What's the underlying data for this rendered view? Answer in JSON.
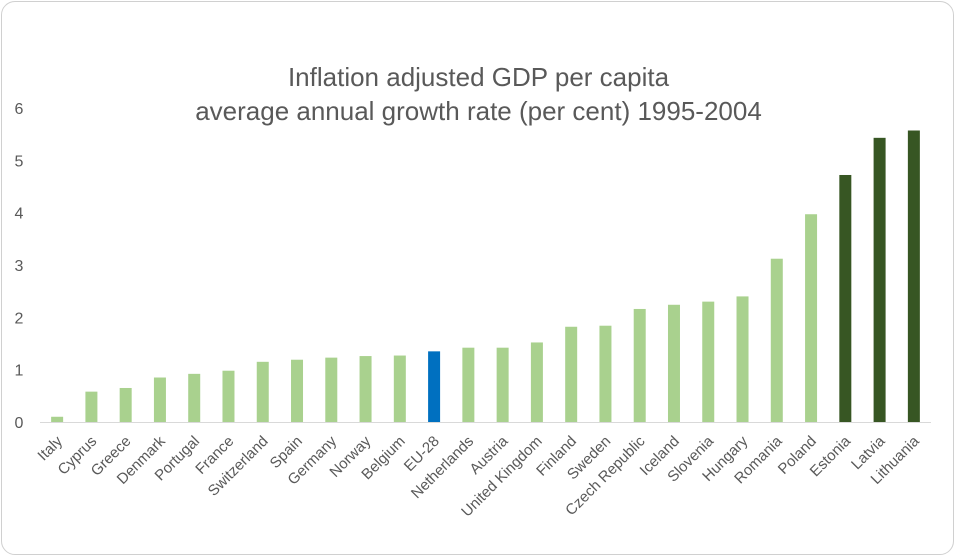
{
  "chart_data": {
    "type": "bar",
    "title_line1": "Inflation adjusted GDP per capita",
    "title_line2": "average annual growth rate (per cent) 1995-2004",
    "xlabel": "",
    "ylabel": "",
    "ylim": [
      0,
      6
    ],
    "yticks": [
      "0",
      "1",
      "2",
      "3",
      "4",
      "5",
      "6"
    ],
    "grid": false,
    "categories": [
      "Italy",
      "Cyprus",
      "Greece",
      "Denmark",
      "Portugal",
      "France",
      "Switzerland",
      "Spain",
      "Germany",
      "Norway",
      "Belgium",
      "EU-28",
      "Netherlands",
      "Austria",
      "United Kingdom",
      "Finland",
      "Sweden",
      "Czech Republic",
      "Iceland",
      "Slovenia",
      "Hungary",
      "Romania",
      "Poland",
      "Estonia",
      "Latvia",
      "Lithuania"
    ],
    "values": [
      0.1,
      0.58,
      0.65,
      0.85,
      0.92,
      0.98,
      1.15,
      1.19,
      1.23,
      1.26,
      1.27,
      1.35,
      1.42,
      1.42,
      1.52,
      1.82,
      1.84,
      2.16,
      2.24,
      2.3,
      2.4,
      3.12,
      3.97,
      4.72,
      5.43,
      5.57
    ],
    "groups": [
      "normal",
      "normal",
      "normal",
      "normal",
      "normal",
      "normal",
      "normal",
      "normal",
      "normal",
      "normal",
      "normal",
      "highlight",
      "normal",
      "normal",
      "normal",
      "normal",
      "normal",
      "normal",
      "normal",
      "normal",
      "normal",
      "normal",
      "normal",
      "top",
      "top",
      "top"
    ],
    "colors": {
      "normal": "#a9d18e",
      "highlight": "#0070c0",
      "top": "#375623"
    }
  }
}
